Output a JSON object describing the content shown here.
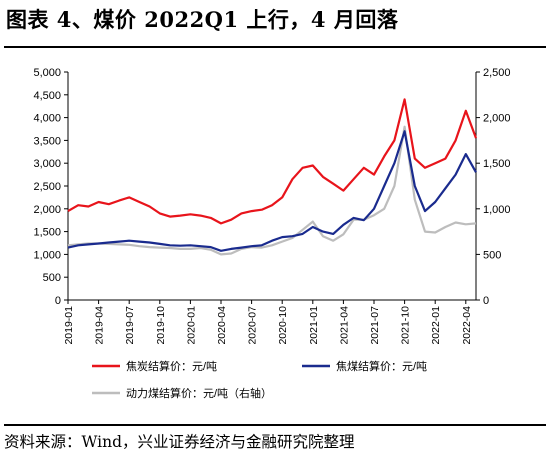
{
  "header": {
    "title": "图表 4、煤价 2022Q1 上行，4 月回落"
  },
  "footer": {
    "source": "资料来源：Wind，兴业证券经济与金融研究院整理"
  },
  "colors": {
    "coke": "#e8141b",
    "coking_coal": "#1a2b8e",
    "thermal_coal": "#bdbdbd"
  },
  "chart_data": {
    "type": "line",
    "title": "",
    "xlabel": "",
    "ylabel": "",
    "y_left": {
      "min": 0,
      "max": 5000,
      "step": 500,
      "ticks": [
        "0",
        "500",
        "1,000",
        "1,500",
        "2,000",
        "2,500",
        "3,000",
        "3,500",
        "4,000",
        "4,500",
        "5,000"
      ]
    },
    "y_right": {
      "min": 0,
      "max": 2500,
      "step": 500,
      "ticks": [
        "0",
        "500",
        "1,000",
        "1,500",
        "2,000",
        "2,500"
      ]
    },
    "x_ticks": [
      "2019-01",
      "2019-04",
      "2019-07",
      "2019-10",
      "2020-01",
      "2020-04",
      "2020-07",
      "2020-10",
      "2021-01",
      "2021-04",
      "2021-07",
      "2021-10",
      "2022-01",
      "2022-04"
    ],
    "x_range": [
      "2019-01",
      "2022-05"
    ],
    "grid": false,
    "legend_position": "bottom",
    "series": [
      {
        "name": "焦炭结算价：元/吨",
        "axis": "left",
        "points": [
          [
            "2019-01",
            1950
          ],
          [
            "2019-02",
            2080
          ],
          [
            "2019-03",
            2050
          ],
          [
            "2019-04",
            2150
          ],
          [
            "2019-05",
            2100
          ],
          [
            "2019-06",
            2180
          ],
          [
            "2019-07",
            2250
          ],
          [
            "2019-08",
            2150
          ],
          [
            "2019-09",
            2050
          ],
          [
            "2019-10",
            1900
          ],
          [
            "2019-11",
            1830
          ],
          [
            "2019-12",
            1850
          ],
          [
            "2020-01",
            1880
          ],
          [
            "2020-02",
            1850
          ],
          [
            "2020-03",
            1800
          ],
          [
            "2020-04",
            1680
          ],
          [
            "2020-05",
            1760
          ],
          [
            "2020-06",
            1900
          ],
          [
            "2020-07",
            1950
          ],
          [
            "2020-08",
            1980
          ],
          [
            "2020-09",
            2080
          ],
          [
            "2020-10",
            2250
          ],
          [
            "2020-11",
            2650
          ],
          [
            "2020-12",
            2900
          ],
          [
            "2021-01",
            2950
          ],
          [
            "2021-02",
            2700
          ],
          [
            "2021-03",
            2550
          ],
          [
            "2021-04",
            2400
          ],
          [
            "2021-05",
            2650
          ],
          [
            "2021-06",
            2900
          ],
          [
            "2021-07",
            2750
          ],
          [
            "2021-08",
            3150
          ],
          [
            "2021-09",
            3500
          ],
          [
            "2021-10",
            4400
          ],
          [
            "2021-11",
            3100
          ],
          [
            "2021-12",
            2900
          ],
          [
            "2022-01",
            3000
          ],
          [
            "2022-02",
            3100
          ],
          [
            "2022-03",
            3500
          ],
          [
            "2022-04",
            4150
          ],
          [
            "2022-05",
            3550
          ]
        ]
      },
      {
        "name": "焦煤结算价：元/吨",
        "axis": "left",
        "points": [
          [
            "2019-01",
            1150
          ],
          [
            "2019-02",
            1200
          ],
          [
            "2019-03",
            1220
          ],
          [
            "2019-04",
            1240
          ],
          [
            "2019-05",
            1260
          ],
          [
            "2019-06",
            1280
          ],
          [
            "2019-07",
            1300
          ],
          [
            "2019-08",
            1280
          ],
          [
            "2019-09",
            1260
          ],
          [
            "2019-10",
            1230
          ],
          [
            "2019-11",
            1200
          ],
          [
            "2019-12",
            1190
          ],
          [
            "2020-01",
            1200
          ],
          [
            "2020-02",
            1180
          ],
          [
            "2020-03",
            1160
          ],
          [
            "2020-04",
            1080
          ],
          [
            "2020-05",
            1120
          ],
          [
            "2020-06",
            1150
          ],
          [
            "2020-07",
            1180
          ],
          [
            "2020-08",
            1200
          ],
          [
            "2020-09",
            1300
          ],
          [
            "2020-10",
            1380
          ],
          [
            "2020-11",
            1400
          ],
          [
            "2020-12",
            1450
          ],
          [
            "2021-01",
            1600
          ],
          [
            "2021-02",
            1500
          ],
          [
            "2021-03",
            1450
          ],
          [
            "2021-04",
            1650
          ],
          [
            "2021-05",
            1800
          ],
          [
            "2021-06",
            1750
          ],
          [
            "2021-07",
            2000
          ],
          [
            "2021-08",
            2500
          ],
          [
            "2021-09",
            3000
          ],
          [
            "2021-10",
            3700
          ],
          [
            "2021-11",
            2500
          ],
          [
            "2021-12",
            1950
          ],
          [
            "2022-01",
            2150
          ],
          [
            "2022-02",
            2450
          ],
          [
            "2022-03",
            2750
          ],
          [
            "2022-04",
            3200
          ],
          [
            "2022-05",
            2800
          ]
        ]
      },
      {
        "name": "动力煤结算价：元/吨（右轴）",
        "axis": "right",
        "points": [
          [
            "2019-01",
            600
          ],
          [
            "2019-02",
            610
          ],
          [
            "2019-03",
            620
          ],
          [
            "2019-04",
            620
          ],
          [
            "2019-05",
            615
          ],
          [
            "2019-06",
            610
          ],
          [
            "2019-07",
            605
          ],
          [
            "2019-08",
            590
          ],
          [
            "2019-09",
            580
          ],
          [
            "2019-10",
            575
          ],
          [
            "2019-11",
            570
          ],
          [
            "2019-12",
            560
          ],
          [
            "2020-01",
            560
          ],
          [
            "2020-02",
            570
          ],
          [
            "2020-03",
            550
          ],
          [
            "2020-04",
            500
          ],
          [
            "2020-05",
            510
          ],
          [
            "2020-06",
            560
          ],
          [
            "2020-07",
            580
          ],
          [
            "2020-08",
            575
          ],
          [
            "2020-09",
            600
          ],
          [
            "2020-10",
            640
          ],
          [
            "2020-11",
            680
          ],
          [
            "2020-12",
            770
          ],
          [
            "2021-01",
            860
          ],
          [
            "2021-02",
            700
          ],
          [
            "2021-03",
            650
          ],
          [
            "2021-04",
            720
          ],
          [
            "2021-05",
            880
          ],
          [
            "2021-06",
            880
          ],
          [
            "2021-07",
            930
          ],
          [
            "2021-08",
            1000
          ],
          [
            "2021-09",
            1250
          ],
          [
            "2021-10",
            1900
          ],
          [
            "2021-11",
            1100
          ],
          [
            "2021-12",
            750
          ],
          [
            "2022-01",
            740
          ],
          [
            "2022-02",
            800
          ],
          [
            "2022-03",
            850
          ],
          [
            "2022-04",
            830
          ],
          [
            "2022-05",
            840
          ]
        ]
      }
    ]
  }
}
